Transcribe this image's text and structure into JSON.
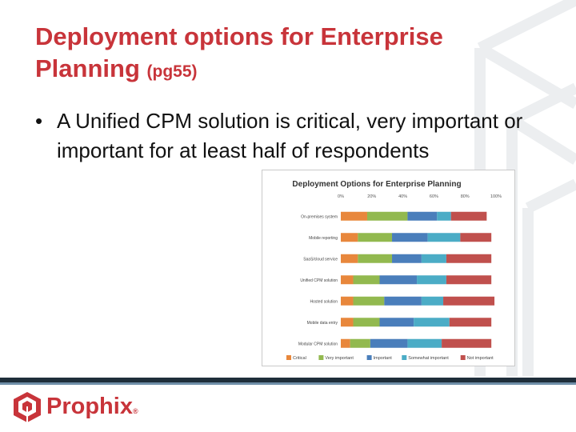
{
  "slide": {
    "title_main": "Deployment options for Enterprise Planning",
    "title_ref": "(pg55)",
    "bullet_symbol": "•",
    "bullet_text": "A Unified CPM solution is critical, very important or important for at least half of respondents"
  },
  "logo": {
    "word": "Prophix",
    "registered": "®"
  },
  "colors": {
    "title": "#c8343a",
    "footer_dark": "#1f2e3a",
    "footer_accent": "#6f8ea8"
  },
  "chart_data": {
    "type": "bar",
    "orientation": "horizontal",
    "stacked": true,
    "title": "Deployment Options for Enterprise Planning",
    "xlim": [
      0,
      100
    ],
    "x_ticks": [
      "0%",
      "20%",
      "40%",
      "60%",
      "80%",
      "100%"
    ],
    "categories": [
      "On-premises system",
      "Mobile reporting",
      "SaaS/cloud service",
      "Unified CPM solution",
      "Hosted solution",
      "Mobile data entry",
      "Modular CPM solution"
    ],
    "series": [
      {
        "name": "Critical",
        "color": "#e8873c",
        "values": [
          17,
          11,
          11,
          8,
          8,
          8,
          6
        ]
      },
      {
        "name": "Very important",
        "color": "#92b94f",
        "values": [
          26,
          22,
          22,
          17,
          20,
          17,
          13
        ]
      },
      {
        "name": "Important",
        "color": "#4a7ebb",
        "values": [
          19,
          23,
          19,
          24,
          24,
          22,
          24
        ]
      },
      {
        "name": "Somewhat important",
        "color": "#4bacc6",
        "values": [
          9,
          21,
          16,
          19,
          14,
          23,
          22
        ]
      },
      {
        "name": "Not important",
        "color": "#c0504d",
        "values": [
          23,
          20,
          29,
          29,
          33,
          27,
          32
        ]
      }
    ],
    "legend": "bottom",
    "grid": false
  }
}
